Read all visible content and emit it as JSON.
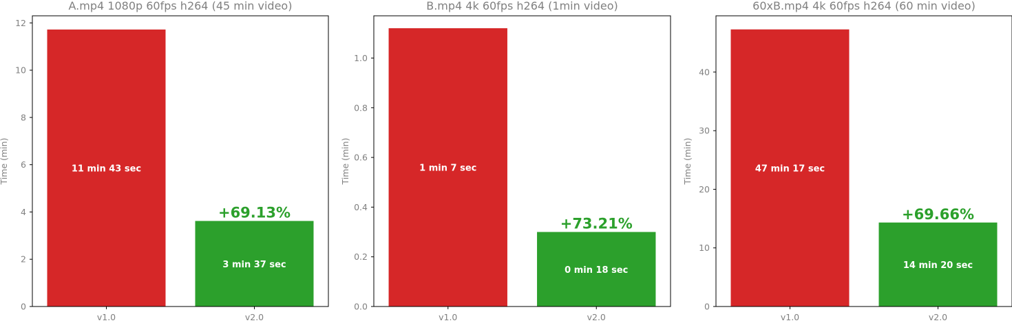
{
  "chart_data": [
    {
      "type": "bar",
      "title": "A.mp4 1080p 60fps h264 (45 min video)",
      "ylabel": "Time (min)",
      "ylim": [
        0,
        12.3
      ],
      "yticks": [
        0,
        2,
        4,
        6,
        8,
        10,
        12
      ],
      "categories": [
        "v1.0",
        "v2.0"
      ],
      "values": [
        11.72,
        3.62
      ],
      "bar_labels": [
        "11 min 43 sec",
        "3 min 37 sec"
      ],
      "improvement": "+69.13%"
    },
    {
      "type": "bar",
      "title": "B.mp4 4k 60fps h264 (1min video)",
      "ylabel": "Time (min)",
      "ylim": [
        0,
        1.17
      ],
      "yticks": [
        0.0,
        0.2,
        0.4,
        0.6,
        0.8,
        1.0
      ],
      "categories": [
        "v1.0",
        "v2.0"
      ],
      "values": [
        1.12,
        0.3
      ],
      "bar_labels": [
        "1 min 7 sec",
        "0 min 18 sec"
      ],
      "improvement": "+73.21%"
    },
    {
      "type": "bar",
      "title": "60xB.mp4 4k 60fps h264 (60 min video)",
      "ylabel": "Time (min)",
      "ylim": [
        0,
        49.6
      ],
      "yticks": [
        0,
        10,
        20,
        30,
        40
      ],
      "categories": [
        "v1.0",
        "v2.0"
      ],
      "values": [
        47.28,
        14.33
      ],
      "bar_labels": [
        "47 min 17 sec",
        "14 min 20 sec"
      ],
      "improvement": "+69.66%"
    }
  ],
  "colors": {
    "old": "#d62728",
    "new": "#2ca02c",
    "axis_text": "#808080",
    "improvement": "#2ca02c"
  }
}
